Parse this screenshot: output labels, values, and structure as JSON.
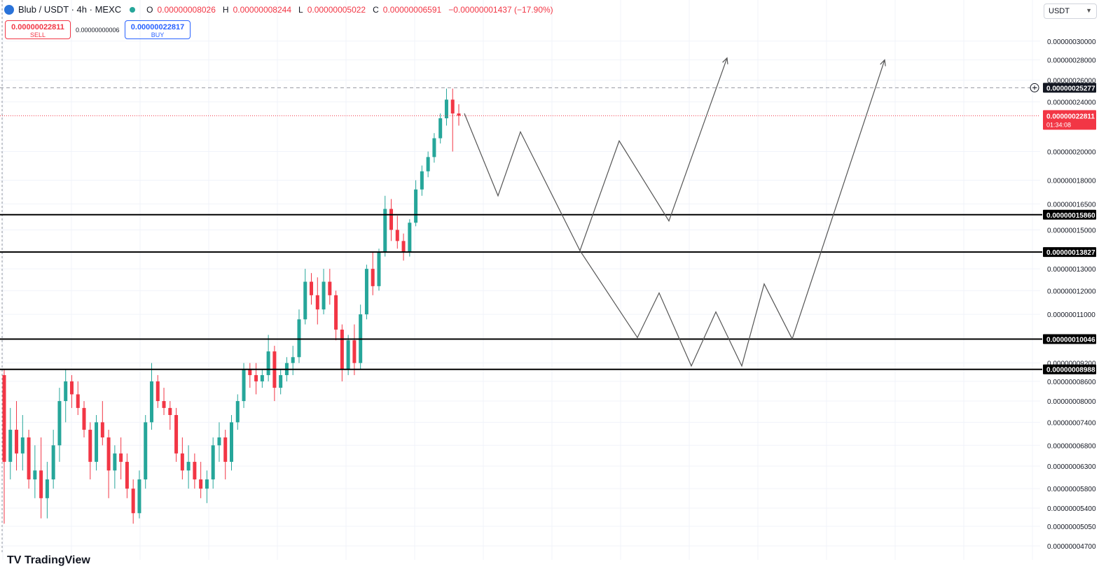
{
  "header": {
    "symbol": "Blub / USDT · 4h · MEXC",
    "ohlc": [
      {
        "k": "O",
        "v": "0.00000008026"
      },
      {
        "k": "H",
        "v": "0.00000008244"
      },
      {
        "k": "L",
        "v": "0.00000005022"
      },
      {
        "k": "C",
        "v": "0.00000006591"
      }
    ],
    "change": "−0.00000001437 (−17.90%)"
  },
  "trade": {
    "sell_price": "0.00000022811",
    "sell_label": "SELL",
    "spread": "0.00000000006",
    "buy_price": "0.00000022817",
    "buy_label": "BUY"
  },
  "currency_selector": "USDT",
  "brand_text": "TV TradingView",
  "colors": {
    "up": "#26a69a",
    "down": "#f23645",
    "line": "#000000",
    "drawing": "#555555",
    "grid": "#f0f3fa"
  },
  "chart_data": {
    "type": "candlestick",
    "scale": "log",
    "y_axis_ticks": [
      "0.00000030000",
      "0.00000028000",
      "0.00000026000",
      "0.00000024000",
      "0.00000020000",
      "0.00000018000",
      "0.00000016500",
      "0.00000015000",
      "0.00000013000",
      "0.00000012000",
      "0.00000011000",
      "0.00000009200",
      "0.00000008600",
      "0.00000008000",
      "0.00000007400",
      "0.00000006800",
      "0.00000006300",
      "0.00000005800",
      "0.00000005400",
      "0.00000005050",
      "0.00000004700"
    ],
    "ylim": [
      4.64e-08,
      3.1e-07
    ],
    "current_price": {
      "value": 2.2811e-07,
      "label": "0.00000022811",
      "countdown": "01:34:08"
    },
    "crosshair_price": {
      "value": 2.5277e-07,
      "label": "0.00000025277"
    },
    "horizontal_levels": [
      {
        "value": 1.586e-07,
        "label": "0.00000015860"
      },
      {
        "value": 1.3827e-07,
        "label": "0.00000013827"
      },
      {
        "value": 1.0046e-07,
        "label": "0.00000010046"
      },
      {
        "value": 8.988e-08,
        "label": "0.00000008988"
      }
    ],
    "candles_ohlc": [
      [
        8.8e-08,
        9e-08,
        5.1e-08,
        6.4e-08
      ],
      [
        6.4e-08,
        7.8e-08,
        6e-08,
        7.2e-08
      ],
      [
        7.2e-08,
        8e-08,
        6.2e-08,
        6.6e-08
      ],
      [
        6.6e-08,
        7.6e-08,
        6.2e-08,
        7e-08
      ],
      [
        7e-08,
        7.2e-08,
        5.8e-08,
        6e-08
      ],
      [
        6e-08,
        6.8e-08,
        5.6e-08,
        6.2e-08
      ],
      [
        6.2e-08,
        7e-08,
        5.2e-08,
        5.6e-08
      ],
      [
        5.6e-08,
        6.4e-08,
        5.2e-08,
        6e-08
      ],
      [
        6e-08,
        7.2e-08,
        5.8e-08,
        6.8e-08
      ],
      [
        6.8e-08,
        8.4e-08,
        6.4e-08,
        8e-08
      ],
      [
        8e-08,
        9e-08,
        7.4e-08,
        8.6e-08
      ],
      [
        8.6e-08,
        8.8e-08,
        7.8e-08,
        8.2e-08
      ],
      [
        8.2e-08,
        8.6e-08,
        7.6e-08,
        7.8e-08
      ],
      [
        7.8e-08,
        8e-08,
        7e-08,
        7.2e-08
      ],
      [
        7.2e-08,
        7.4e-08,
        6e-08,
        6.4e-08
      ],
      [
        6.4e-08,
        7.6e-08,
        6.2e-08,
        7.4e-08
      ],
      [
        7.4e-08,
        8e-08,
        6.8e-08,
        7e-08
      ],
      [
        7e-08,
        7.2e-08,
        5.6e-08,
        6.2e-08
      ],
      [
        6.2e-08,
        6.8e-08,
        5.8e-08,
        6.6e-08
      ],
      [
        6.6e-08,
        7e-08,
        6e-08,
        6.4e-08
      ],
      [
        6.4e-08,
        6.6e-08,
        5.6e-08,
        5.8e-08
      ],
      [
        5.8e-08,
        6e-08,
        5.1e-08,
        5.3e-08
      ],
      [
        5.3e-08,
        6.2e-08,
        5.2e-08,
        6e-08
      ],
      [
        6e-08,
        7.6e-08,
        5.8e-08,
        7.4e-08
      ],
      [
        7.4e-08,
        9.2e-08,
        7.2e-08,
        8.6e-08
      ],
      [
        8.6e-08,
        8.8e-08,
        7.8e-08,
        8e-08
      ],
      [
        8e-08,
        8.4e-08,
        7.6e-08,
        7.8e-08
      ],
      [
        7.8e-08,
        8e-08,
        7.2e-08,
        7.6e-08
      ],
      [
        7.6e-08,
        7.8e-08,
        6.4e-08,
        6.6e-08
      ],
      [
        6.6e-08,
        7e-08,
        6e-08,
        6.2e-08
      ],
      [
        6.2e-08,
        6.8e-08,
        5.8e-08,
        6.4e-08
      ],
      [
        6.4e-08,
        6.6e-08,
        5.8e-08,
        6e-08
      ],
      [
        6e-08,
        6.4e-08,
        5.6e-08,
        5.8e-08
      ],
      [
        5.8e-08,
        6.2e-08,
        5.5e-08,
        6e-08
      ],
      [
        6e-08,
        7e-08,
        5.8e-08,
        6.8e-08
      ],
      [
        6.8e-08,
        7.4e-08,
        6.4e-08,
        7e-08
      ],
      [
        7e-08,
        7.2e-08,
        6e-08,
        6.4e-08
      ],
      [
        6.4e-08,
        7.6e-08,
        6.2e-08,
        7.4e-08
      ],
      [
        7.4e-08,
        8.2e-08,
        7.2e-08,
        8e-08
      ],
      [
        8e-08,
        9.2e-08,
        7.8e-08,
        9e-08
      ],
      [
        9e-08,
        9.2e-08,
        8.4e-08,
        8.8e-08
      ],
      [
        8.8e-08,
        9.2e-08,
        8.2e-08,
        8.6e-08
      ],
      [
        8.6e-08,
        9e-08,
        8.4e-08,
        8.8e-08
      ],
      [
        8.8e-08,
        1.02e-07,
        8.6e-08,
        9.6e-08
      ],
      [
        9.6e-08,
        9.8e-08,
        8e-08,
        8.4e-08
      ],
      [
        8.4e-08,
        9e-08,
        8.2e-08,
        8.8e-08
      ],
      [
        8.8e-08,
        9.4e-08,
        8.6e-08,
        9.2e-08
      ],
      [
        9.2e-08,
        9.8e-08,
        8.8e-08,
        9.4e-08
      ],
      [
        9.4e-08,
        1.12e-07,
        9.2e-08,
        1.08e-07
      ],
      [
        1.08e-07,
        1.3e-07,
        1.06e-07,
        1.24e-07
      ],
      [
        1.24e-07,
        1.28e-07,
        1.14e-07,
        1.18e-07
      ],
      [
        1.18e-07,
        1.26e-07,
        1.06e-07,
        1.12e-07
      ],
      [
        1.12e-07,
        1.3e-07,
        1.1e-07,
        1.24e-07
      ],
      [
        1.24e-07,
        1.3e-07,
        1.14e-07,
        1.18e-07
      ],
      [
        1.18e-07,
        1.2e-07,
        1e-07,
        1.04e-07
      ],
      [
        1.04e-07,
        1.06e-07,
        8.6e-08,
        9e-08
      ],
      [
        9e-08,
        1.02e-07,
        8.8e-08,
        1e-07
      ],
      [
        1e-07,
        1.06e-07,
        8.8e-08,
        9.2e-08
      ],
      [
        9.2e-08,
        1.14e-07,
        9e-08,
        1.1e-07
      ],
      [
        1.1e-07,
        1.32e-07,
        1.08e-07,
        1.3e-07
      ],
      [
        1.3e-07,
        1.38e-07,
        1.18e-07,
        1.22e-07
      ],
      [
        1.22e-07,
        1.4e-07,
        1.2e-07,
        1.38e-07
      ],
      [
        1.38e-07,
        1.7e-07,
        1.36e-07,
        1.62e-07
      ],
      [
        1.62e-07,
        1.68e-07,
        1.44e-07,
        1.5e-07
      ],
      [
        1.5e-07,
        1.58e-07,
        1.4e-07,
        1.44e-07
      ],
      [
        1.44e-07,
        1.48e-07,
        1.34e-07,
        1.38e-07
      ],
      [
        1.38e-07,
        1.56e-07,
        1.36e-07,
        1.54e-07
      ],
      [
        1.54e-07,
        1.8e-07,
        1.52e-07,
        1.74e-07
      ],
      [
        1.74e-07,
        1.9e-07,
        1.7e-07,
        1.86e-07
      ],
      [
        1.86e-07,
        2e-07,
        1.82e-07,
        1.96e-07
      ],
      [
        1.96e-07,
        2.14e-07,
        1.92e-07,
        2.1e-07
      ],
      [
        2.1e-07,
        2.3e-07,
        2.06e-07,
        2.26e-07
      ],
      [
        2.26e-07,
        2.52e-07,
        2.2e-07,
        2.42e-07
      ],
      [
        2.42e-07,
        2.52e-07,
        2e-07,
        2.3e-07
      ],
      [
        2.3e-07,
        2.38e-07,
        2.2e-07,
        2.281e-07
      ]
    ],
    "projections": [
      {
        "name": "projection-path-upper",
        "points": [
          [
            2.3e-07,
            2.3e-07
          ],
          [
            1.7e-07,
            1.7e-07
          ],
          [
            2.15e-07,
            2.15e-07
          ],
          [
            1.39e-07,
            1.39e-07
          ],
          [
            2.08e-07,
            2.08e-07
          ],
          [
            1.55e-07,
            1.55e-07
          ],
          [
            2.82e-07,
            2.82e-07
          ]
        ]
      },
      {
        "name": "projection-path-lower",
        "points": [
          [
            1.39e-07,
            1.39e-07
          ],
          [
            1.01e-07,
            1.01e-07
          ],
          [
            1.19e-07,
            1.19e-07
          ],
          [
            9.1e-08,
            9.1e-08
          ],
          [
            1.11e-07,
            1.11e-07
          ],
          [
            9.1e-08,
            9.1e-08
          ],
          [
            1.23e-07,
            1.23e-07
          ],
          [
            1.005e-07,
            1.005e-07
          ],
          [
            2.8e-07,
            2.8e-07
          ]
        ]
      }
    ]
  }
}
